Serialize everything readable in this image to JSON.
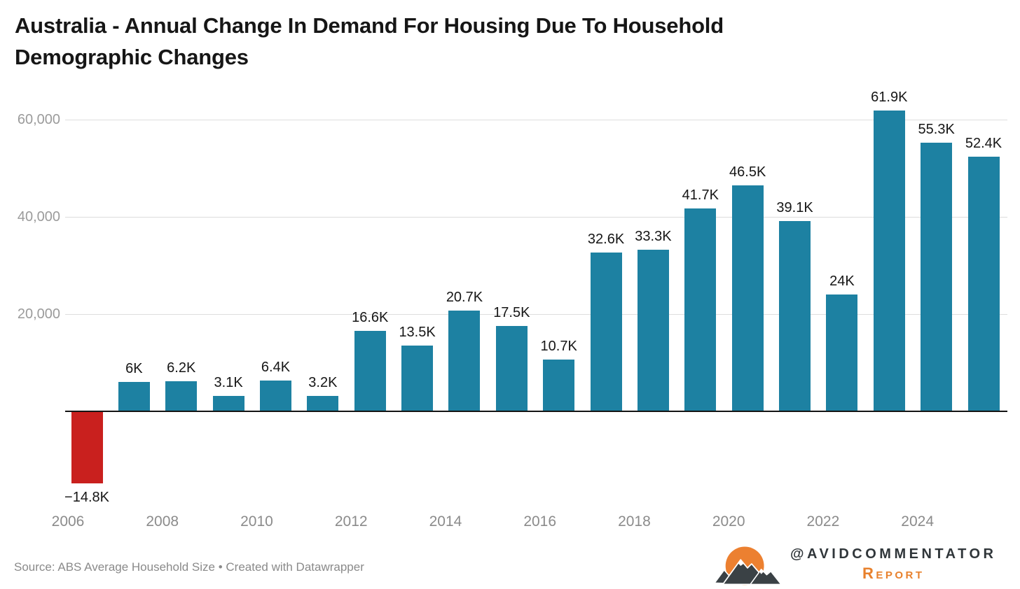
{
  "title": {
    "full": "Australia - Annual Change In Demand For Housing Due To Household Demographic Changes",
    "line1": "Australia - Annual Change In Demand For Housing Due To Household",
    "line2": "Demographic Changes"
  },
  "footer": {
    "source_text": "Source: ABS Average Household Size • Created with Datawrapper"
  },
  "brand": {
    "handle": "@AVIDCOMMENTATOR",
    "report_label": "Report",
    "orange": "#e8812d",
    "dark": "#30363a"
  },
  "chart_data": {
    "type": "bar",
    "title": "Australia - Annual Change In Demand For Housing Due To Household Demographic Changes",
    "x": [
      2006,
      2007,
      2008,
      2009,
      2010,
      2011,
      2012,
      2013,
      2014,
      2015,
      2016,
      2017,
      2018,
      2019,
      2020,
      2021,
      2022,
      2023,
      2024,
      2025
    ],
    "values": [
      -14800,
      6000,
      6200,
      3100,
      6400,
      3200,
      16600,
      13500,
      20700,
      17500,
      10700,
      32600,
      33300,
      41700,
      46500,
      39100,
      24000,
      61900,
      55300,
      52400
    ],
    "labels": [
      "−14.8K",
      "6K",
      "6.2K",
      "3.1K",
      "6.4K",
      "3.2K",
      "16.6K",
      "13.5K",
      "20.7K",
      "17.5K",
      "10.7K",
      "32.6K",
      "33.3K",
      "41.7K",
      "46.5K",
      "39.1K",
      "24K",
      "61.9K",
      "55.3K",
      "52.4K"
    ],
    "yticks": [
      {
        "value": 20000,
        "label": "20,000"
      },
      {
        "value": 40000,
        "label": "40,000"
      },
      {
        "value": 60000,
        "label": "60,000"
      }
    ],
    "xticks_shown": [
      2006,
      2008,
      2010,
      2012,
      2014,
      2016,
      2018,
      2020,
      2022,
      2024
    ],
    "ylim": [
      -20000,
      66000
    ],
    "grid": true,
    "legend": "none",
    "xlabel": "",
    "ylabel": "",
    "colors": {
      "positive": "#1d81a2",
      "negative": "#c9201e",
      "gridline": "#dddddd",
      "axis": "#141414"
    }
  }
}
